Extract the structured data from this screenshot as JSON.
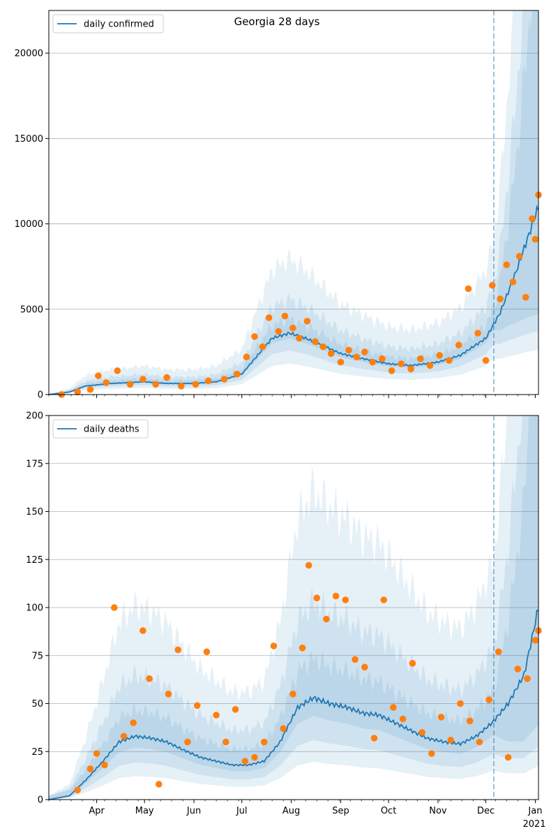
{
  "chart_data": [
    {
      "type": "line",
      "title": "Georgia 28 days",
      "legend": {
        "label": "daily confirmed",
        "placement": "top-left"
      },
      "ylim": [
        0,
        22500
      ],
      "y_ticks": [
        0,
        5000,
        10000,
        15000,
        20000
      ],
      "x_ticks": [
        "Apr",
        "May",
        "Jun",
        "Jul",
        "Aug",
        "Sep",
        "Oct",
        "Nov",
        "Dec",
        "Jan"
      ],
      "x_ticks_visible": false,
      "x_range": [
        "2020-03-02",
        "2021-01-03"
      ],
      "forecast_start": "2020-12-06",
      "grid": "horizontal",
      "colors": {
        "line": "#1f77b4",
        "points": "#ff7f0e",
        "band": "#1f77b4",
        "vline": "#1f77b4"
      },
      "series": [
        {
          "name": "daily confirmed",
          "kind": "smoothed line",
          "x": [
            "2020-03-02",
            "2020-03-15",
            "2020-03-25",
            "2020-04-10",
            "2020-05-01",
            "2020-05-15",
            "2020-06-01",
            "2020-06-15",
            "2020-07-01",
            "2020-07-10",
            "2020-07-20",
            "2020-07-31",
            "2020-08-10",
            "2020-08-20",
            "2020-09-01",
            "2020-09-15",
            "2020-10-01",
            "2020-10-15",
            "2020-11-01",
            "2020-11-15",
            "2020-12-01",
            "2020-12-10",
            "2020-12-20",
            "2021-01-03"
          ],
          "y": [
            0,
            150,
            500,
            650,
            750,
            650,
            650,
            750,
            1200,
            2200,
            3300,
            3600,
            3300,
            2900,
            2400,
            2100,
            1800,
            1700,
            1900,
            2300,
            3300,
            4800,
            7200,
            11000
          ]
        },
        {
          "name": "observed",
          "kind": "scatter",
          "x": [
            "2020-03-10",
            "2020-03-20",
            "2020-03-28",
            "2020-04-02",
            "2020-04-07",
            "2020-04-14",
            "2020-04-22",
            "2020-04-30",
            "2020-05-08",
            "2020-05-15",
            "2020-05-24",
            "2020-06-02",
            "2020-06-10",
            "2020-06-20",
            "2020-06-28",
            "2020-07-04",
            "2020-07-09",
            "2020-07-14",
            "2020-07-18",
            "2020-07-24",
            "2020-07-28",
            "2020-08-02",
            "2020-08-06",
            "2020-08-11",
            "2020-08-16",
            "2020-08-21",
            "2020-08-26",
            "2020-09-01",
            "2020-09-06",
            "2020-09-11",
            "2020-09-16",
            "2020-09-21",
            "2020-09-27",
            "2020-10-03",
            "2020-10-09",
            "2020-10-15",
            "2020-10-21",
            "2020-10-27",
            "2020-11-02",
            "2020-11-08",
            "2020-11-14",
            "2020-11-20",
            "2020-11-26",
            "2020-12-01",
            "2020-12-05",
            "2020-12-10",
            "2020-12-14",
            "2020-12-18",
            "2020-12-22",
            "2020-12-26",
            "2020-12-30",
            "2021-01-01",
            "2021-01-03"
          ],
          "y": [
            0,
            150,
            300,
            1100,
            700,
            1400,
            600,
            900,
            600,
            1000,
            500,
            600,
            800,
            900,
            1200,
            2200,
            3400,
            2800,
            4500,
            3700,
            4600,
            3900,
            3300,
            4300,
            3100,
            2800,
            2400,
            1900,
            2600,
            2200,
            2500,
            1900,
            2100,
            1400,
            1800,
            1500,
            2100,
            1700,
            2300,
            2000,
            2900,
            6200,
            3600,
            2000,
            6400,
            5600,
            7600,
            6600,
            8100,
            5700,
            10300,
            9100,
            11700
          ]
        }
      ]
    },
    {
      "type": "line",
      "title": "",
      "legend": {
        "label": "daily deaths",
        "placement": "top-left"
      },
      "ylim": [
        0,
        200
      ],
      "y_ticks": [
        0,
        25,
        50,
        75,
        100,
        125,
        150,
        175,
        200
      ],
      "x_ticks": [
        "Apr",
        "May",
        "Jun",
        "Jul",
        "Aug",
        "Sep",
        "Oct",
        "Nov",
        "Dec",
        "Jan"
      ],
      "x_tick_sublabel": "2021",
      "x_range": [
        "2020-03-02",
        "2021-01-03"
      ],
      "forecast_start": "2020-12-06",
      "grid": "horizontal",
      "colors": {
        "line": "#1f77b4",
        "points": "#ff7f0e",
        "band": "#1f77b4",
        "vline": "#1f77b4"
      },
      "series": [
        {
          "name": "daily deaths",
          "kind": "smoothed line",
          "x": [
            "2020-03-02",
            "2020-03-15",
            "2020-03-25",
            "2020-04-05",
            "2020-04-15",
            "2020-04-25",
            "2020-05-05",
            "2020-05-15",
            "2020-05-25",
            "2020-06-05",
            "2020-06-15",
            "2020-06-25",
            "2020-07-05",
            "2020-07-15",
            "2020-07-25",
            "2020-08-05",
            "2020-08-15",
            "2020-08-25",
            "2020-09-05",
            "2020-09-15",
            "2020-09-25",
            "2020-10-05",
            "2020-10-15",
            "2020-10-25",
            "2020-11-05",
            "2020-11-15",
            "2020-11-25",
            "2020-12-05",
            "2020-12-15",
            "2020-12-25",
            "2021-01-03"
          ],
          "y": [
            0,
            2,
            10,
            20,
            30,
            33,
            32,
            30,
            26,
            22,
            20,
            18,
            18,
            20,
            30,
            48,
            53,
            50,
            48,
            45,
            44,
            40,
            36,
            32,
            30,
            29,
            33,
            40,
            50,
            65,
            100
          ]
        },
        {
          "name": "observed",
          "kind": "scatter",
          "x": [
            "2020-03-20",
            "2020-03-28",
            "2020-04-01",
            "2020-04-06",
            "2020-04-12",
            "2020-04-18",
            "2020-04-24",
            "2020-04-30",
            "2020-05-04",
            "2020-05-10",
            "2020-05-16",
            "2020-05-22",
            "2020-05-28",
            "2020-06-03",
            "2020-06-09",
            "2020-06-15",
            "2020-06-21",
            "2020-06-27",
            "2020-07-03",
            "2020-07-09",
            "2020-07-15",
            "2020-07-21",
            "2020-07-27",
            "2020-08-02",
            "2020-08-08",
            "2020-08-12",
            "2020-08-17",
            "2020-08-23",
            "2020-08-29",
            "2020-09-04",
            "2020-09-10",
            "2020-09-16",
            "2020-09-22",
            "2020-09-28",
            "2020-10-04",
            "2020-10-10",
            "2020-10-16",
            "2020-10-22",
            "2020-10-28",
            "2020-11-03",
            "2020-11-09",
            "2020-11-15",
            "2020-11-21",
            "2020-11-27",
            "2020-12-03",
            "2020-12-09",
            "2020-12-15",
            "2020-12-21",
            "2020-12-27",
            "2021-01-01",
            "2021-01-03"
          ],
          "y": [
            5,
            16,
            24,
            18,
            100,
            33,
            40,
            88,
            63,
            8,
            55,
            78,
            30,
            49,
            77,
            44,
            30,
            47,
            20,
            22,
            30,
            80,
            37,
            55,
            79,
            122,
            105,
            94,
            106,
            104,
            73,
            69,
            32,
            104,
            48,
            42,
            71,
            35,
            24,
            43,
            31,
            50,
            41,
            30,
            52,
            77,
            22,
            68,
            63,
            83,
            88
          ]
        }
      ]
    }
  ]
}
